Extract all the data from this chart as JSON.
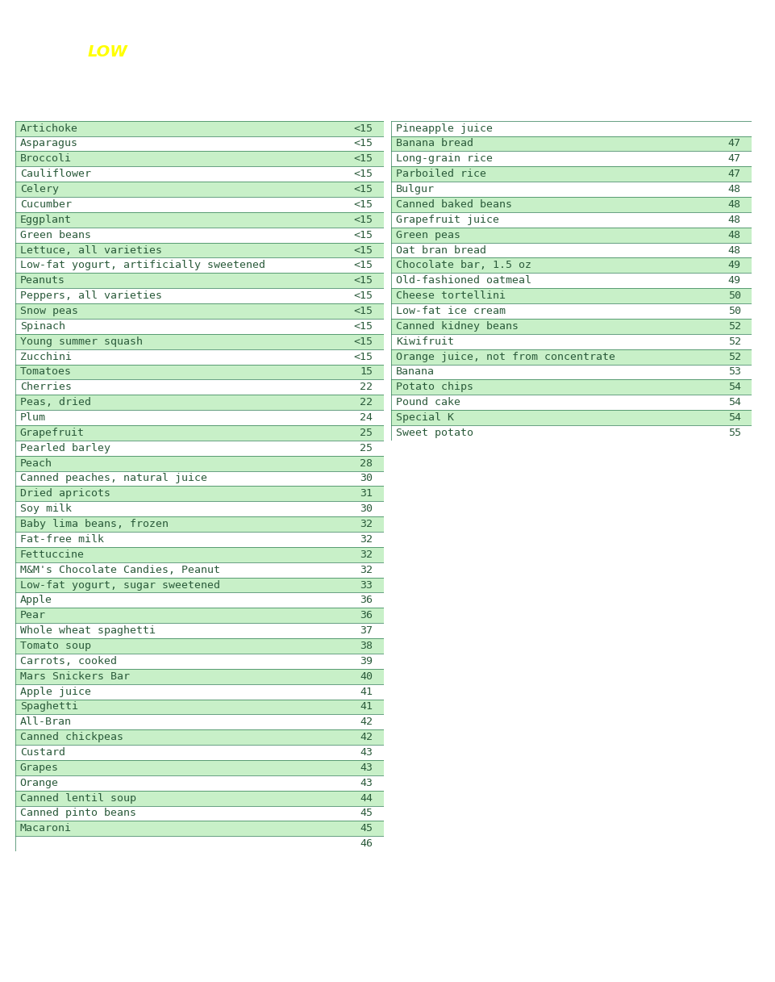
{
  "title_bg_color": "#1a9070",
  "title_LOW_color": "#ffff00",
  "title_text_color": "#ffffff",
  "highlight_color": "#c8f0c8",
  "border_color": "#2a7a50",
  "text_color": "#2a5a3a",
  "font_size": 9.5,
  "left_col": [
    [
      "Artichoke",
      "<15",
      true
    ],
    [
      "Asparagus",
      "<15",
      false
    ],
    [
      "Broccoli",
      "<15",
      true
    ],
    [
      "Cauliflower",
      "<15",
      false
    ],
    [
      "Celery",
      "<15",
      true
    ],
    [
      "Cucumber",
      "<15",
      false
    ],
    [
      "Eggplant",
      "<15",
      true
    ],
    [
      "Green beans",
      "<15",
      false
    ],
    [
      "Lettuce, all varieties",
      "<15",
      true
    ],
    [
      "Low-fat yogurt, artificially sweetened",
      "<15",
      false
    ],
    [
      "Peanuts",
      "<15",
      true
    ],
    [
      "Peppers, all varieties",
      "<15",
      false
    ],
    [
      "Snow peas",
      "<15",
      true
    ],
    [
      "Spinach",
      "<15",
      false
    ],
    [
      "Young summer squash",
      "<15",
      true
    ],
    [
      "Zucchini",
      "<15",
      false
    ],
    [
      "Tomatoes",
      "15",
      true
    ],
    [
      "Cherries",
      "22",
      false
    ],
    [
      "Peas, dried",
      "22",
      true
    ],
    [
      "Plum",
      "24",
      false
    ],
    [
      "Grapefruit",
      "25",
      true
    ],
    [
      "Pearled barley",
      "25",
      false
    ],
    [
      "Peach",
      "28",
      true
    ],
    [
      "Canned peaches, natural juice",
      "30",
      false
    ],
    [
      "Dried apricots",
      "31",
      true
    ],
    [
      "Soy milk",
      "30",
      false
    ],
    [
      "Baby lima beans, frozen",
      "32",
      true
    ],
    [
      "Fat-free milk",
      "32",
      false
    ],
    [
      "Fettuccine",
      "32",
      true
    ],
    [
      "M&M's Chocolate Candies, Peanut",
      "32",
      false
    ],
    [
      "Low-fat yogurt, sugar sweetened",
      "33",
      true
    ],
    [
      "Apple",
      "36",
      false
    ],
    [
      "Pear",
      "36",
      true
    ],
    [
      "Whole wheat spaghetti",
      "37",
      false
    ],
    [
      "Tomato soup",
      "38",
      true
    ],
    [
      "Carrots, cooked",
      "39",
      false
    ],
    [
      "Mars Snickers Bar",
      "40",
      true
    ],
    [
      "Apple juice",
      "41",
      false
    ],
    [
      "Spaghetti",
      "41",
      true
    ],
    [
      "All-Bran",
      "42",
      false
    ],
    [
      "Canned chickpeas",
      "42",
      true
    ],
    [
      "Custard",
      "43",
      false
    ],
    [
      "Grapes",
      "43",
      true
    ],
    [
      "Orange",
      "43",
      false
    ],
    [
      "Canned lentil soup",
      "44",
      true
    ],
    [
      "Canned pinto beans",
      "45",
      false
    ],
    [
      "Macaroni",
      "45",
      true
    ],
    [
      "",
      "46",
      false
    ]
  ],
  "right_col": [
    [
      "Pineapple juice",
      "",
      false
    ],
    [
      "Banana bread",
      "47",
      true
    ],
    [
      "Long-grain rice",
      "47",
      false
    ],
    [
      "Parboiled rice",
      "47",
      true
    ],
    [
      "Bulgur",
      "48",
      false
    ],
    [
      "Canned baked beans",
      "48",
      true
    ],
    [
      "Grapefruit juice",
      "48",
      false
    ],
    [
      "Green peas",
      "48",
      true
    ],
    [
      "Oat bran bread",
      "48",
      false
    ],
    [
      "Chocolate bar, 1.5 oz",
      "49",
      true
    ],
    [
      "Old-fashioned oatmeal",
      "49",
      false
    ],
    [
      "Cheese tortellini",
      "50",
      true
    ],
    [
      "Low-fat ice cream",
      "50",
      false
    ],
    [
      "Canned kidney beans",
      "52",
      true
    ],
    [
      "Kiwifruit",
      "52",
      false
    ],
    [
      "Orange juice, not from concentrate",
      "52",
      true
    ],
    [
      "Banana",
      "53",
      false
    ],
    [
      "Potato chips",
      "54",
      true
    ],
    [
      "Pound cake",
      "54",
      false
    ],
    [
      "Special K",
      "54",
      true
    ],
    [
      "Sweet potato",
      "55",
      false
    ]
  ]
}
